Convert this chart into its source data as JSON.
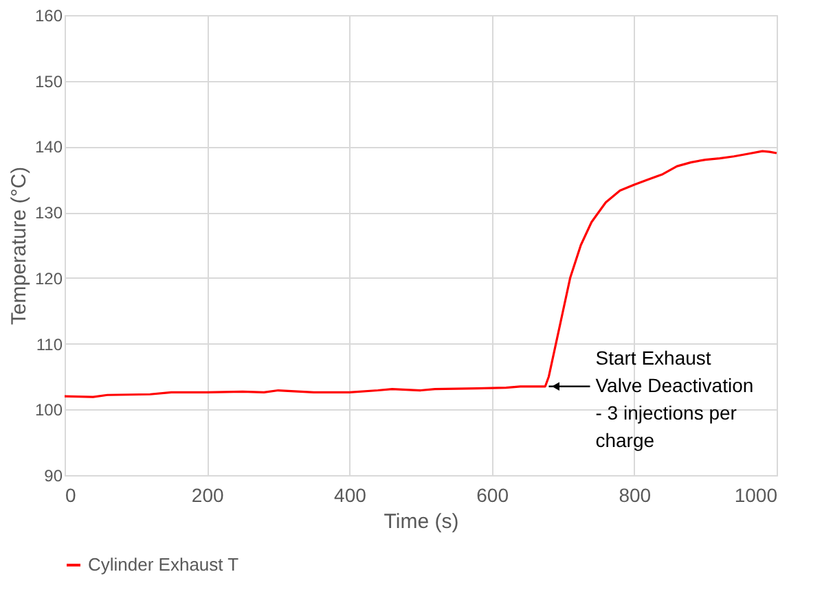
{
  "chart_data": {
    "type": "line",
    "xlabel": "Time (s)",
    "ylabel": "Temperature (°C)",
    "xlim": [
      0,
      1000
    ],
    "xticks": [
      0,
      200,
      400,
      600,
      800,
      1000
    ],
    "ylim": [
      90,
      160
    ],
    "yticks": [
      90,
      100,
      110,
      120,
      130,
      140,
      150,
      160
    ],
    "grid": true,
    "legend": "bottom",
    "marker": "none",
    "line_style": "solid",
    "series": [
      {
        "name": "Cylinder Exhaust T",
        "color": "#ff0000",
        "x": [
          0,
          40,
          60,
          120,
          150,
          200,
          250,
          280,
          300,
          350,
          400,
          440,
          460,
          500,
          520,
          580,
          620,
          640,
          675,
          680,
          690,
          700,
          710,
          725,
          740,
          760,
          780,
          800,
          820,
          840,
          860,
          880,
          900,
          920,
          940,
          960,
          980,
          990,
          1000
        ],
        "values": [
          102,
          101.9,
          102.2,
          102.3,
          102.6,
          102.6,
          102.7,
          102.6,
          102.9,
          102.6,
          102.6,
          102.9,
          103.1,
          102.9,
          103.1,
          103.2,
          103.3,
          103.5,
          103.5,
          105,
          110,
          115,
          120,
          125,
          128.5,
          131.5,
          133.3,
          134.2,
          135,
          135.8,
          137,
          137.6,
          138,
          138.2,
          138.5,
          138.9,
          139.3,
          139.2,
          139
        ]
      }
    ],
    "annotations": [
      {
        "text": "Start Exhaust\nValve Deactivation\n- 3 injections per\ncharge",
        "x": 680,
        "y": 103.5
      }
    ]
  }
}
